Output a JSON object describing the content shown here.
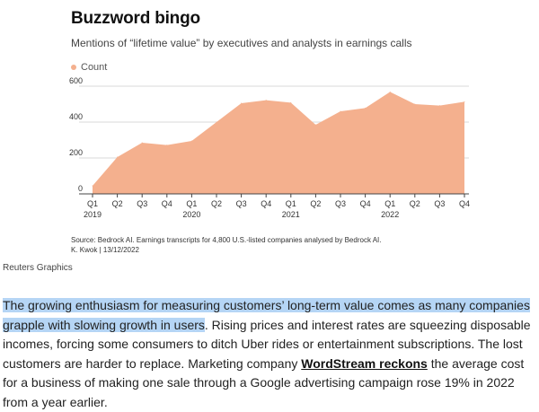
{
  "chart": {
    "title": "Buzzword bingo",
    "subtitle": "Mentions of “lifetime value” by executives and analysts in earnings calls",
    "legend_label": "Count",
    "source": "Source: Bedrock AI. Earnings transcripts for 4,800 U.S.-listed companies analysed by Bedrock AI.",
    "credit": "K. Kwok | 13/12/2022",
    "area_color": "#f4b08e",
    "grid_color": "#d9d9d9"
  },
  "chart_data": {
    "type": "area",
    "title": "Buzzword bingo",
    "subtitle": "Mentions of “lifetime value” by executives and analysts in earnings calls",
    "xlabel": "",
    "ylabel": "",
    "ylim": [
      0,
      600
    ],
    "yticks": [
      0,
      200,
      400,
      600
    ],
    "grid": true,
    "legend": "top-left",
    "x": [
      "Q1 2019",
      "Q2 2019",
      "Q3 2019",
      "Q4 2019",
      "Q1 2020",
      "Q2 2020",
      "Q3 2020",
      "Q4 2020",
      "Q1 2021",
      "Q2 2021",
      "Q3 2021",
      "Q4 2021",
      "Q1 2022",
      "Q2 2022",
      "Q3 2022",
      "Q4 2022"
    ],
    "tick_labels": [
      {
        "quarter": "Q1",
        "year": "2019"
      },
      {
        "quarter": "Q2",
        "year": ""
      },
      {
        "quarter": "Q3",
        "year": ""
      },
      {
        "quarter": "Q4",
        "year": ""
      },
      {
        "quarter": "Q1",
        "year": "2020"
      },
      {
        "quarter": "Q2",
        "year": ""
      },
      {
        "quarter": "Q3",
        "year": ""
      },
      {
        "quarter": "Q4",
        "year": ""
      },
      {
        "quarter": "Q1",
        "year": "2021"
      },
      {
        "quarter": "Q2",
        "year": ""
      },
      {
        "quarter": "Q3",
        "year": ""
      },
      {
        "quarter": "Q4",
        "year": ""
      },
      {
        "quarter": "Q1",
        "year": "2022"
      },
      {
        "quarter": "Q2",
        "year": ""
      },
      {
        "quarter": "Q3",
        "year": ""
      },
      {
        "quarter": "Q4",
        "year": ""
      }
    ],
    "series": [
      {
        "name": "Count",
        "values": [
          45,
          205,
          285,
          272,
          295,
          400,
          505,
          522,
          508,
          385,
          460,
          478,
          568,
          500,
          492,
          513
        ]
      }
    ]
  },
  "attribution": "Reuters Graphics",
  "paragraph": {
    "highlighted": "The growing enthusiasm for measuring customers’ long-term value comes as many companies grapple with slowing growth in users",
    "after_highlight": ". Rising prices and interest rates are squeezing disposable incomes, forcing some consumers to ditch Uber rides or entertainment subscriptions. The lost customers are harder to replace. Marketing company ",
    "link_text": "WordStream reckons",
    "after_link": " the average cost for a business of making one sale through a Google advertising campaign rose 19% in 2022 from a year earlier."
  }
}
